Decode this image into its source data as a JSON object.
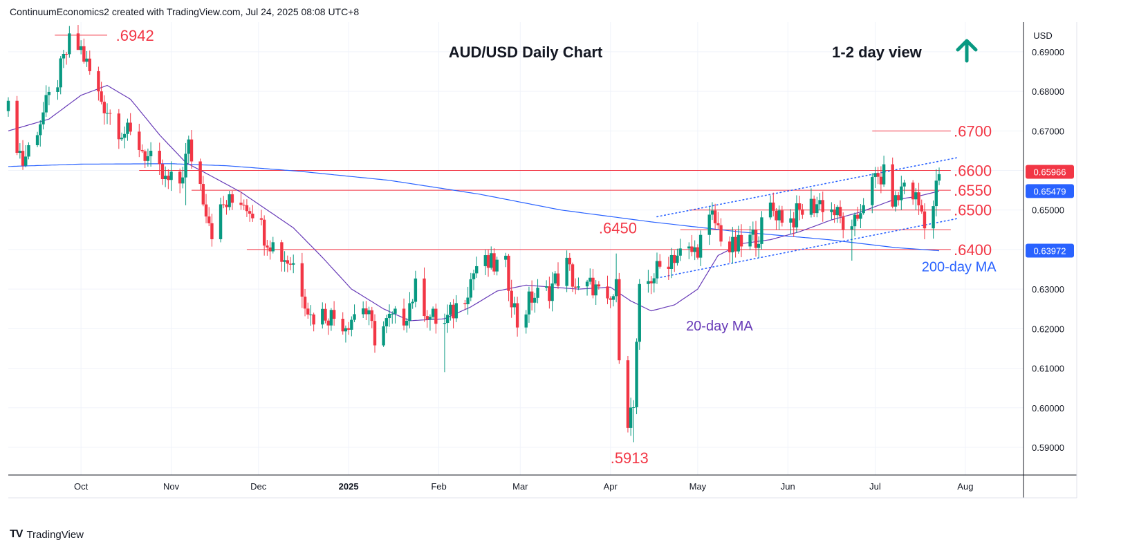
{
  "header": {
    "attribution": "ContinuumEconomics2 created with TradingView.com, Jul 24, 2025 08:08 UTC+8"
  },
  "footer": {
    "brand": "TradingView",
    "logo": "TV"
  },
  "colors": {
    "bull": "#089981",
    "bear": "#f23645",
    "ma20": "#673ab7",
    "ma200": "#2962ff",
    "level": "#f23645",
    "channel": "#2962ff"
  },
  "chart_data": {
    "type": "candlestick",
    "title": "AUD/USD Daily Chart",
    "view": {
      "label": "1-2 day view",
      "icon": "arrow-up-icon"
    },
    "currency": "USD",
    "ylim": [
      0.583,
      0.6975
    ],
    "y_ticks": [
      "0.69000",
      "0.68000",
      "0.67000",
      "0.66000",
      "0.65000",
      "0.64000",
      "0.63000",
      "0.62000",
      "0.61000",
      "0.60000",
      "0.59000"
    ],
    "x_ticks": [
      {
        "label": "Oct",
        "date": "2024-10-01"
      },
      {
        "label": "Nov",
        "date": "2024-11-01"
      },
      {
        "label": "Dec",
        "date": "2024-12-01"
      },
      {
        "label": "2025",
        "date": "2025-01-01",
        "bold": true
      },
      {
        "label": "Feb",
        "date": "2025-02-01"
      },
      {
        "label": "Mar",
        "date": "2025-03-01"
      },
      {
        "label": "Apr",
        "date": "2025-04-01"
      },
      {
        "label": "May",
        "date": "2025-05-01"
      },
      {
        "label": "Jun",
        "date": "2025-06-01"
      },
      {
        "label": "Jul",
        "date": "2025-07-01"
      },
      {
        "label": "Aug",
        "date": "2025-08-01"
      }
    ],
    "x_range": [
      "2024-09-06",
      "2025-08-21"
    ],
    "price_tags": [
      {
        "value": "0.65966",
        "price": 0.65966,
        "color": "#f23645"
      },
      {
        "value": "0.65479",
        "price": 0.65479,
        "color": "#2962ff"
      },
      {
        "value": "0.63972",
        "price": 0.63972,
        "color": "#2962ff"
      }
    ],
    "levels": [
      {
        "label": ".6942",
        "price": 0.6942,
        "from": "2024-09-22",
        "to": "2024-10-10",
        "label_date": "2024-10-13"
      },
      {
        "label": ".6700",
        "price": 0.67,
        "from": "2025-06-30",
        "to": "2025-07-27",
        "label_date": "2025-07-28"
      },
      {
        "label": ".6600",
        "price": 0.66,
        "from": "2024-10-21",
        "to": "2025-07-27",
        "label_date": "2025-07-28"
      },
      {
        "label": ".6550",
        "price": 0.655,
        "from": "2024-11-08",
        "to": "2025-07-27",
        "label_date": "2025-07-28"
      },
      {
        "label": ".6500",
        "price": 0.65,
        "from": "2025-04-28",
        "to": "2025-07-27",
        "label_date": "2025-07-28"
      },
      {
        "label": ".6450",
        "price": 0.645,
        "from": "2025-04-25",
        "to": "2025-07-27",
        "label_date": "2025-03-28",
        "label_dy": -3
      },
      {
        "label": ".6400",
        "price": 0.64,
        "from": "2024-11-27",
        "to": "2025-07-27",
        "label_date": "2025-07-28"
      }
    ],
    "annotations": [
      {
        "label": ".5913",
        "date": "2025-04-01",
        "price": 0.586,
        "color": "#f23645",
        "size": 22
      },
      {
        "label": "20-day MA",
        "date": "2025-04-27",
        "price": 0.6195,
        "color": "#673ab7",
        "size": 20
      },
      {
        "label": "200-day MA",
        "date": "2025-07-17",
        "price": 0.6345,
        "color": "#2962ff",
        "size": 20
      }
    ],
    "channel": [
      {
        "from": [
          "2025-04-17",
          0.6483
        ],
        "to": [
          "2025-07-29",
          0.6632
        ]
      },
      {
        "from": [
          "2025-04-17",
          0.6328
        ],
        "to": [
          "2025-07-29",
          0.6478
        ]
      }
    ],
    "anchors": [
      [
        "2024-09-06",
        0.675
      ],
      [
        "2024-09-11",
        0.662
      ],
      [
        "2024-09-16",
        0.671
      ],
      [
        "2024-09-23",
        0.683
      ],
      [
        "2024-09-27",
        0.692
      ],
      [
        "2024-10-01",
        0.6905
      ],
      [
        "2024-10-07",
        0.679
      ],
      [
        "2024-10-14",
        0.671
      ],
      [
        "2024-10-21",
        0.6665
      ],
      [
        "2024-10-25",
        0.662
      ],
      [
        "2024-10-30",
        0.657
      ],
      [
        "2024-11-04",
        0.657
      ],
      [
        "2024-11-07",
        0.666
      ],
      [
        "2024-11-11",
        0.6565
      ],
      [
        "2024-11-15",
        0.645
      ],
      [
        "2024-11-19",
        0.651
      ],
      [
        "2024-11-25",
        0.653
      ],
      [
        "2024-11-29",
        0.6505
      ],
      [
        "2024-12-03",
        0.644
      ],
      [
        "2024-12-09",
        0.6385
      ],
      [
        "2024-12-13",
        0.6365
      ],
      [
        "2024-12-17",
        0.628
      ],
      [
        "2024-12-19",
        0.623
      ],
      [
        "2024-12-24",
        0.624
      ],
      [
        "2024-12-31",
        0.6215
      ],
      [
        "2025-01-06",
        0.626
      ],
      [
        "2025-01-10",
        0.618
      ],
      [
        "2025-01-15",
        0.622
      ],
      [
        "2025-01-20",
        0.623
      ],
      [
        "2025-01-24",
        0.63
      ],
      [
        "2025-01-29",
        0.623
      ],
      [
        "2025-02-03",
        0.621
      ],
      [
        "2025-02-10",
        0.629
      ],
      [
        "2025-02-14",
        0.636
      ],
      [
        "2025-02-19",
        0.636
      ],
      [
        "2025-02-24",
        0.6355
      ],
      [
        "2025-02-28",
        0.6215
      ],
      [
        "2025-03-05",
        0.628
      ],
      [
        "2025-03-10",
        0.629
      ],
      [
        "2025-03-17",
        0.636
      ],
      [
        "2025-03-21",
        0.629
      ],
      [
        "2025-03-26",
        0.631
      ],
      [
        "2025-03-31",
        0.625
      ],
      [
        "2025-04-03",
        0.63
      ],
      [
        "2025-04-04",
        0.615
      ],
      [
        "2025-04-07",
        0.5975
      ],
      [
        "2025-04-09",
        0.6
      ],
      [
        "2025-04-11",
        0.6285
      ],
      [
        "2025-04-15",
        0.633
      ],
      [
        "2025-04-22",
        0.6385
      ],
      [
        "2025-04-30",
        0.6395
      ],
      [
        "2025-05-06",
        0.648
      ],
      [
        "2025-05-12",
        0.64
      ],
      [
        "2025-05-16",
        0.641
      ],
      [
        "2025-05-22",
        0.644
      ],
      [
        "2025-05-26",
        0.6505
      ],
      [
        "2025-06-02",
        0.6475
      ],
      [
        "2025-06-06",
        0.65
      ],
      [
        "2025-06-12",
        0.652
      ],
      [
        "2025-06-17",
        0.6495
      ],
      [
        "2025-06-23",
        0.6435
      ],
      [
        "2025-06-27",
        0.653
      ],
      [
        "2025-07-01",
        0.6575
      ],
      [
        "2025-07-04",
        0.6585
      ],
      [
        "2025-07-08",
        0.6515
      ],
      [
        "2025-07-11",
        0.657
      ],
      [
        "2025-07-15",
        0.653
      ],
      [
        "2025-07-18",
        0.648
      ],
      [
        "2025-07-21",
        0.651
      ],
      [
        "2025-07-23",
        0.6597
      ]
    ],
    "wicks": [
      [
        "2024-09-30",
        0.6942
      ],
      [
        "2024-11-07",
        0.6688
      ],
      [
        "2025-02-03",
        0.609
      ],
      [
        "2025-04-09",
        0.5913
      ],
      [
        "2025-04-03",
        0.639
      ],
      [
        "2025-05-26",
        0.6537
      ],
      [
        "2025-06-23",
        0.6372
      ],
      [
        "2024-11-06",
        0.6512
      ]
    ],
    "ma20_anchors": [
      [
        "2024-09-06",
        0.67
      ],
      [
        "2024-09-20",
        0.673
      ],
      [
        "2024-10-01",
        0.679
      ],
      [
        "2024-10-10",
        0.6815
      ],
      [
        "2024-10-18",
        0.678
      ],
      [
        "2024-10-28",
        0.669
      ],
      [
        "2024-11-06",
        0.662
      ],
      [
        "2024-11-15",
        0.6585
      ],
      [
        "2024-11-25",
        0.6545
      ],
      [
        "2024-12-04",
        0.65
      ],
      [
        "2024-12-13",
        0.6455
      ],
      [
        "2024-12-23",
        0.638
      ],
      [
        "2025-01-02",
        0.63
      ],
      [
        "2025-01-13",
        0.625
      ],
      [
        "2025-01-22",
        0.622
      ],
      [
        "2025-02-03",
        0.6225
      ],
      [
        "2025-02-12",
        0.6255
      ],
      [
        "2025-02-21",
        0.6295
      ],
      [
        "2025-03-03",
        0.631
      ],
      [
        "2025-03-12",
        0.6305
      ],
      [
        "2025-03-21",
        0.63
      ],
      [
        "2025-04-01",
        0.6305
      ],
      [
        "2025-04-08",
        0.627
      ],
      [
        "2025-04-15",
        0.6245
      ],
      [
        "2025-04-23",
        0.626
      ],
      [
        "2025-05-01",
        0.63
      ],
      [
        "2025-05-08",
        0.6385
      ],
      [
        "2025-05-16",
        0.6415
      ],
      [
        "2025-05-26",
        0.6425
      ],
      [
        "2025-06-05",
        0.6445
      ],
      [
        "2025-06-16",
        0.6475
      ],
      [
        "2025-06-26",
        0.6495
      ],
      [
        "2025-07-07",
        0.6525
      ],
      [
        "2025-07-16",
        0.6535
      ],
      [
        "2025-07-23",
        0.6548
      ]
    ],
    "ma200_anchors": [
      [
        "2024-09-06",
        0.661
      ],
      [
        "2024-10-01",
        0.6616
      ],
      [
        "2024-11-01",
        0.6617
      ],
      [
        "2024-11-20",
        0.6612
      ],
      [
        "2024-12-15",
        0.6598
      ],
      [
        "2025-01-15",
        0.6575
      ],
      [
        "2025-02-15",
        0.654
      ],
      [
        "2025-03-15",
        0.65
      ],
      [
        "2025-04-15",
        0.647
      ],
      [
        "2025-05-15",
        0.6445
      ],
      [
        "2025-06-15",
        0.6425
      ],
      [
        "2025-07-08",
        0.6405
      ],
      [
        "2025-07-23",
        0.6397
      ]
    ]
  }
}
